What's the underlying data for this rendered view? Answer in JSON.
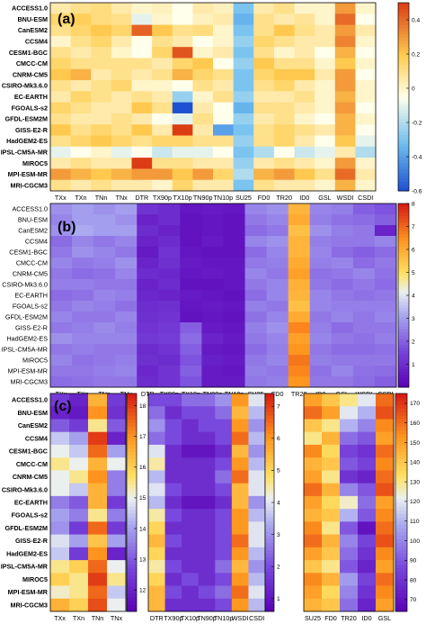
{
  "chart_data": [
    {
      "type": "heatmap",
      "panel_label": "(a)",
      "models": [
        "ACCESS1.0",
        "BNU-ESM",
        "CanESM2",
        "CCSM4",
        "CESM1-BGC",
        "CMCC-CM",
        "CNRM-CM5",
        "CSIRO-Mk3.6.0",
        "EC-EARTH",
        "FGOALS-s2",
        "GFDL-ESM2M",
        "GISS-E2-R",
        "HadGEM2-ES",
        "IPSL-CM5A-MR",
        "MIROC5",
        "MPI-ESM-MR",
        "MRI-CGCM3"
      ],
      "indices": [
        "TXx",
        "TXn",
        "TNn",
        "TNx",
        "DTR",
        "TX90p",
        "TX10p",
        "TN90p",
        "TN10p",
        "SU25",
        "FD0",
        "TR20",
        "ID0",
        "GSL",
        "WSDI",
        "CSDI"
      ],
      "colorbar": {
        "range": [
          -0.6,
          0.5
        ],
        "ticks": [
          -0.6,
          -0.4,
          -0.2,
          0,
          0.2,
          0.4
        ],
        "colormap": "diverging blue-white-red"
      },
      "values": [
        [
          0.05,
          0.1,
          0.12,
          0.05,
          0.0,
          0.02,
          -0.05,
          0.05,
          0.02,
          -0.3,
          0.05,
          0.1,
          0.0,
          0.0,
          0.3,
          0.0
        ],
        [
          0.15,
          0.18,
          0.12,
          0.1,
          -0.1,
          0.0,
          -0.05,
          0.02,
          0.05,
          -0.35,
          0.1,
          0.05,
          0.08,
          0.0,
          0.4,
          -0.05
        ],
        [
          0.1,
          0.15,
          0.2,
          0.15,
          0.42,
          0.2,
          0.1,
          0.12,
          0.0,
          -0.3,
          0.1,
          0.2,
          0.1,
          0.05,
          0.3,
          0.05
        ],
        [
          0.0,
          0.1,
          0.15,
          0.05,
          -0.05,
          0.1,
          0.05,
          -0.05,
          0.0,
          -0.25,
          0.15,
          0.1,
          0.05,
          0.05,
          0.35,
          0.0
        ],
        [
          0.1,
          0.05,
          0.1,
          0.0,
          -0.05,
          0.15,
          0.45,
          0.0,
          0.05,
          -0.3,
          0.1,
          0.0,
          0.05,
          -0.05,
          0.25,
          -0.05
        ],
        [
          0.15,
          0.1,
          0.1,
          0.1,
          0.1,
          0.05,
          0.15,
          0.2,
          -0.05,
          -0.25,
          0.2,
          0.1,
          0.1,
          0.0,
          0.2,
          0.0
        ],
        [
          0.2,
          0.25,
          0.05,
          0.1,
          0.05,
          0.1,
          0.25,
          0.15,
          0.1,
          -0.3,
          0.15,
          0.2,
          0.2,
          0.05,
          0.3,
          -0.05
        ],
        [
          0.1,
          0.05,
          0.1,
          0.15,
          0.0,
          0.0,
          -0.05,
          0.1,
          0.05,
          -0.3,
          0.1,
          0.15,
          0.05,
          0.0,
          0.3,
          0.0
        ],
        [
          0.05,
          0.15,
          0.1,
          0.05,
          0.1,
          0.05,
          -0.25,
          0.0,
          0.1,
          -0.25,
          0.05,
          0.05,
          0.1,
          0.0,
          0.25,
          0.0
        ],
        [
          0.15,
          0.1,
          0.05,
          0.05,
          0.2,
          0.1,
          -0.6,
          0.05,
          -0.05,
          -0.35,
          0.1,
          0.1,
          0.05,
          0.0,
          0.3,
          -0.05
        ],
        [
          0.1,
          0.05,
          0.05,
          0.1,
          0.05,
          -0.05,
          -0.1,
          0.1,
          -0.05,
          -0.25,
          0.05,
          0.1,
          0.0,
          -0.05,
          0.25,
          0.0
        ],
        [
          0.2,
          0.1,
          0.15,
          0.1,
          0.2,
          0.05,
          0.5,
          0.05,
          -0.4,
          -0.3,
          0.1,
          0.15,
          0.1,
          0.05,
          0.25,
          -0.05
        ],
        [
          0.1,
          0.15,
          0.2,
          0.15,
          0.1,
          0.15,
          0.15,
          0.1,
          0.1,
          -0.25,
          0.1,
          0.15,
          0.05,
          -0.05,
          0.2,
          -0.1
        ],
        [
          -0.1,
          -0.05,
          0.0,
          -0.1,
          -0.05,
          -0.15,
          -0.1,
          -0.1,
          -0.05,
          -0.3,
          -0.2,
          -0.05,
          -0.15,
          -0.1,
          0.05,
          -0.2
        ],
        [
          0.05,
          0.1,
          0.05,
          0.05,
          0.5,
          0.1,
          0.1,
          0.05,
          0.05,
          -0.25,
          0.05,
          0.1,
          0.05,
          0.0,
          0.3,
          0.0
        ],
        [
          0.3,
          0.25,
          0.2,
          0.25,
          0.3,
          0.3,
          0.2,
          0.3,
          0.15,
          -0.2,
          0.25,
          0.3,
          0.2,
          0.1,
          0.4,
          0.05
        ],
        [
          0.1,
          0.05,
          0.1,
          0.05,
          0.05,
          0.0,
          0.15,
          0.05,
          0.05,
          -0.3,
          0.1,
          0.05,
          0.05,
          0.0,
          0.25,
          0.0
        ]
      ]
    },
    {
      "type": "heatmap",
      "panel_label": "(b)",
      "models": [
        "ACCESS1.0",
        "BNU-ESM",
        "CanESM2",
        "CCSM4",
        "CESM1-BGC",
        "CMCC-CM",
        "CNRM-CM5",
        "CSIRO-Mk3.6.0",
        "EC-EARTH",
        "FGOALS-s2",
        "GFDL-ESM2M",
        "GISS-E2-R",
        "HadGEM2-ES",
        "IPSL-CM5A-MR",
        "MIROC5",
        "MPI-ESM-MR",
        "MRI-CGCM3"
      ],
      "indices": [
        "TXx",
        "TXn",
        "TNn",
        "TNx",
        "DTR",
        "TX90p",
        "TX10p",
        "TN90p",
        "TN10p",
        "SU25",
        "FD0",
        "TR20",
        "ID0",
        "GSL",
        "WSDI",
        "CSDI"
      ],
      "colorbar": {
        "range": [
          0,
          8
        ],
        "ticks": [
          1,
          2,
          3,
          4,
          5,
          6,
          7,
          8
        ],
        "colormap": "purple-blue-white-orange-red"
      },
      "values": [
        [
          2.8,
          3.0,
          2.8,
          3.0,
          1.2,
          1.0,
          0.5,
          0.6,
          0.5,
          2.6,
          2.8,
          5.8,
          2.6,
          2.5,
          2.0,
          1.8
        ],
        [
          2.6,
          3.0,
          3.0,
          2.8,
          0.8,
          1.0,
          0.4,
          0.5,
          0.4,
          2.4,
          2.6,
          6.0,
          2.5,
          2.3,
          2.2,
          2.0
        ],
        [
          2.8,
          3.2,
          3.0,
          3.0,
          1.0,
          0.8,
          0.4,
          0.5,
          0.4,
          2.2,
          2.4,
          5.6,
          2.8,
          2.5,
          2.4,
          0.8
        ],
        [
          2.2,
          2.6,
          2.4,
          2.6,
          0.8,
          1.0,
          0.4,
          0.6,
          0.4,
          2.6,
          2.8,
          5.8,
          2.5,
          2.4,
          2.4,
          2.6
        ],
        [
          2.4,
          2.8,
          2.6,
          2.4,
          0.6,
          1.2,
          0.5,
          0.4,
          0.4,
          2.2,
          2.6,
          5.8,
          2.6,
          2.2,
          2.0,
          2.2
        ],
        [
          2.6,
          2.4,
          2.5,
          2.8,
          0.8,
          1.1,
          0.6,
          0.5,
          0.5,
          2.4,
          2.5,
          6.0,
          2.5,
          2.6,
          2.2,
          2.4
        ],
        [
          2.4,
          2.2,
          2.3,
          2.6,
          1.0,
          0.9,
          0.5,
          0.6,
          0.5,
          2.6,
          2.4,
          6.2,
          2.3,
          2.4,
          2.6,
          2.3
        ],
        [
          2.5,
          2.5,
          2.4,
          2.4,
          0.8,
          1.0,
          0.4,
          0.4,
          0.5,
          2.4,
          2.6,
          5.9,
          2.4,
          2.2,
          2.4,
          2.2
        ],
        [
          2.2,
          2.3,
          2.6,
          2.5,
          0.9,
          0.8,
          0.6,
          0.5,
          0.4,
          2.2,
          2.6,
          5.8,
          2.6,
          2.4,
          2.3,
          2.4
        ],
        [
          2.4,
          2.6,
          2.5,
          2.3,
          1.0,
          1.1,
          0.5,
          0.6,
          0.5,
          2.5,
          2.4,
          5.6,
          2.6,
          2.5,
          2.5,
          2.5
        ],
        [
          2.6,
          2.4,
          2.4,
          2.6,
          1.1,
          1.2,
          0.4,
          0.5,
          0.4,
          2.3,
          2.6,
          6.0,
          2.4,
          2.6,
          2.4,
          2.6
        ],
        [
          2.4,
          2.5,
          2.7,
          2.5,
          1.2,
          1.3,
          2.0,
          0.6,
          0.5,
          2.5,
          2.8,
          6.6,
          2.5,
          2.2,
          2.4,
          2.4
        ],
        [
          2.8,
          2.6,
          2.6,
          2.6,
          1.3,
          1.4,
          2.2,
          0.8,
          0.6,
          2.4,
          2.6,
          6.2,
          2.6,
          2.4,
          2.3,
          2.5
        ],
        [
          2.4,
          2.5,
          2.4,
          2.4,
          1.0,
          1.2,
          2.0,
          0.6,
          0.5,
          2.2,
          2.5,
          6.4,
          2.4,
          2.2,
          2.2,
          2.3
        ],
        [
          2.6,
          2.3,
          2.4,
          2.5,
          1.1,
          1.0,
          1.8,
          0.7,
          0.6,
          2.4,
          2.6,
          6.8,
          2.5,
          2.4,
          2.4,
          2.4
        ],
        [
          2.4,
          2.4,
          2.5,
          2.6,
          0.9,
          1.2,
          2.0,
          0.6,
          0.5,
          2.5,
          2.4,
          6.6,
          2.3,
          2.6,
          2.3,
          2.2
        ],
        [
          2.2,
          2.3,
          2.4,
          2.4,
          1.0,
          1.2,
          1.8,
          0.6,
          0.6,
          2.4,
          2.5,
          6.4,
          2.4,
          2.4,
          2.2,
          2.0
        ]
      ]
    },
    {
      "type": "heatmap",
      "panel_label": "(c)",
      "models": [
        "ACCESS1.0",
        "BNU-ESM",
        "CanESM2",
        "CCSM4",
        "CESM1-BGC",
        "CMCC-CM",
        "CNRM-CM5",
        "CSIRO-Mk3.6.0",
        "EC-EARTH",
        "FGOALS-s2",
        "GFDL-ESM2M",
        "GISS-E2-R",
        "HadGEM2-ES",
        "IPSL-CM5A-MR",
        "MIROC5",
        "MPI-ESM-MR",
        "MRI-CGCM3"
      ],
      "indices": [
        "TXx",
        "TXn",
        "TNn",
        "TNx"
      ],
      "colorbar": {
        "range": [
          11.3,
          18.4
        ],
        "ticks": [
          12,
          13,
          14,
          15,
          16,
          17,
          18
        ],
        "colormap": "purple-blue-white-orange-red"
      },
      "values": [
        [
          12.5,
          12.0,
          16.5,
          12.5
        ],
        [
          12.0,
          11.8,
          17.0,
          12.3
        ],
        [
          13.0,
          12.5,
          15.5,
          13.0
        ],
        [
          14.5,
          14.0,
          18.0,
          12.0
        ],
        [
          15.0,
          14.5,
          17.5,
          14.0
        ],
        [
          15.5,
          15.0,
          16.5,
          15.0
        ],
        [
          15.0,
          15.5,
          17.0,
          13.5
        ],
        [
          15.0,
          14.5,
          16.5,
          13.5
        ],
        [
          13.5,
          13.0,
          16.5,
          12.5
        ],
        [
          14.0,
          13.5,
          15.5,
          13.5
        ],
        [
          13.8,
          12.5,
          17.5,
          12.5
        ],
        [
          14.8,
          14.0,
          16.2,
          14.0
        ],
        [
          14.5,
          12.5,
          17.0,
          12.0
        ],
        [
          15.5,
          16.0,
          17.5,
          15.0
        ],
        [
          16.0,
          15.5,
          18.0,
          15.5
        ],
        [
          15.2,
          15.5,
          17.5,
          14.5
        ],
        [
          16.5,
          16.0,
          17.8,
          15.0
        ]
      ]
    },
    {
      "type": "heatmap",
      "panel_label": "",
      "models": [
        "ACCESS1.0",
        "BNU-ESM",
        "CanESM2",
        "CCSM4",
        "CESM1-BGC",
        "CMCC-CM",
        "CNRM-CM5",
        "CSIRO-Mk3.6.0",
        "EC-EARTH",
        "FGOALS-s2",
        "GFDL-ESM2M",
        "GISS-E2-R",
        "HadGEM2-ES",
        "IPSL-CM5A-MR",
        "MIROC5",
        "MPI-ESM-MR",
        "MRI-CGCM3"
      ],
      "indices": [
        "DTR",
        "TX90p",
        "TX10p",
        "TN90p",
        "TN10p",
        "WSDI",
        "CSDI"
      ],
      "colorbar": {
        "range": [
          0.6,
          7.4
        ],
        "ticks": [
          1,
          2,
          3,
          4,
          5,
          6,
          7
        ],
        "colormap": "purple-blue-white-orange-red"
      },
      "values": [
        [
          2.0,
          2.0,
          2.5,
          2.5,
          3.0,
          6.0,
          4.0
        ],
        [
          2.5,
          1.5,
          2.0,
          2.0,
          2.5,
          5.5,
          3.5
        ],
        [
          3.0,
          2.0,
          1.5,
          2.0,
          2.0,
          6.0,
          3.0
        ],
        [
          2.5,
          2.0,
          1.5,
          1.5,
          2.0,
          6.5,
          3.5
        ],
        [
          4.0,
          1.5,
          1.0,
          1.0,
          1.5,
          5.5,
          3.0
        ],
        [
          4.5,
          1.5,
          1.5,
          1.5,
          2.0,
          6.0,
          3.5
        ],
        [
          3.5,
          1.5,
          1.5,
          1.5,
          2.5,
          6.5,
          4.0
        ],
        [
          4.0,
          2.0,
          1.5,
          1.5,
          2.0,
          5.5,
          4.0
        ],
        [
          3.5,
          1.5,
          1.0,
          1.0,
          1.5,
          5.5,
          3.0
        ],
        [
          4.5,
          2.0,
          1.5,
          1.5,
          2.0,
          6.0,
          3.5
        ],
        [
          5.0,
          1.5,
          1.5,
          1.5,
          2.0,
          6.0,
          4.0
        ],
        [
          5.5,
          2.0,
          1.5,
          1.5,
          2.0,
          6.5,
          4.0
        ],
        [
          5.0,
          1.5,
          1.5,
          1.5,
          2.0,
          6.0,
          3.5
        ],
        [
          4.5,
          2.0,
          1.5,
          1.5,
          2.5,
          5.5,
          3.0
        ],
        [
          5.0,
          1.5,
          2.0,
          1.5,
          2.0,
          6.0,
          3.5
        ],
        [
          5.5,
          2.0,
          1.5,
          2.0,
          2.5,
          6.5,
          4.0
        ],
        [
          5.5,
          1.5,
          1.5,
          1.5,
          2.0,
          6.0,
          3.5
        ]
      ]
    },
    {
      "type": "heatmap",
      "panel_label": "",
      "models": [
        "ACCESS1.0",
        "BNU-ESM",
        "CanESM2",
        "CCSM4",
        "CESM1-BGC",
        "CMCC-CM",
        "CNRM-CM5",
        "CSIRO-Mk3.6.0",
        "EC-EARTH",
        "FGOALS-s2",
        "GFDL-ESM2M",
        "GISS-E2-R",
        "HadGEM2-ES",
        "IPSL-CM5A-MR",
        "MIROC5",
        "MPI-ESM-MR",
        "MRI-CGCM3"
      ],
      "indices": [
        "SU25",
        "FD0",
        "TR20",
        "ID0",
        "GSL"
      ],
      "colorbar": {
        "range": [
          64,
          175
        ],
        "ticks": [
          70,
          80,
          90,
          100,
          110,
          120,
          130,
          140,
          150,
          160,
          170
        ],
        "colormap": "purple-blue-white-orange-red"
      },
      "values": [
        [
          150,
          140,
          130,
          120,
          160
        ],
        [
          160,
          150,
          120,
          110,
          165
        ],
        [
          140,
          130,
          110,
          100,
          155
        ],
        [
          130,
          145,
          95,
          90,
          150
        ],
        [
          155,
          135,
          85,
          80,
          160
        ],
        [
          145,
          140,
          90,
          85,
          155
        ],
        [
          150,
          130,
          80,
          75,
          160
        ],
        [
          160,
          145,
          100,
          90,
          165
        ],
        [
          150,
          135,
          125,
          95,
          150
        ],
        [
          145,
          140,
          110,
          90,
          155
        ],
        [
          155,
          130,
          90,
          70,
          160
        ],
        [
          160,
          145,
          100,
          85,
          165
        ],
        [
          150,
          140,
          95,
          80,
          155
        ],
        [
          140,
          130,
          90,
          75,
          150
        ],
        [
          155,
          145,
          105,
          85,
          160
        ],
        [
          150,
          135,
          100,
          80,
          155
        ],
        [
          145,
          140,
          95,
          75,
          150
        ]
      ]
    }
  ]
}
